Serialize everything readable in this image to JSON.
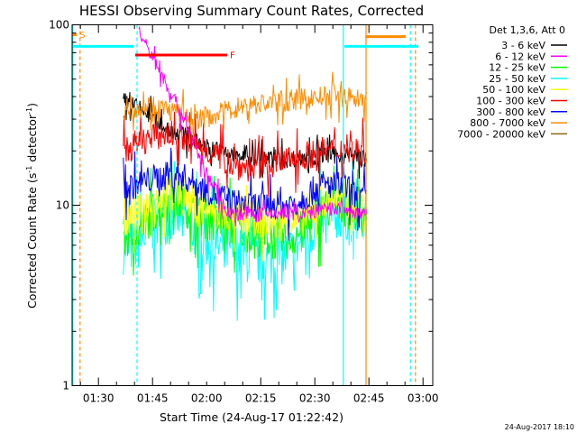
{
  "chart_data": {
    "type": "line",
    "title": "HESSI Observing Summary Count Rates, Corrected",
    "xlabel": "Start Time (24-Aug-17 01:22:42)",
    "ylabel": "Corrected Count Rate (s⁻¹ detector⁻¹)",
    "ylabel_main": "Corrected Count Rate (s",
    "ylabel_sup1": "-1",
    "ylabel_mid": " detector",
    "ylabel_sup2": "-1",
    "ylabel_end": ")",
    "yscale": "log",
    "ylim": [
      1,
      100
    ],
    "xlim_minutes": [
      0,
      100
    ],
    "y_ticks": [
      {
        "value": 1,
        "label": "1"
      },
      {
        "value": 10,
        "label": "10"
      },
      {
        "value": 100,
        "label": "100"
      }
    ],
    "x_ticks": [
      {
        "minute": 7.3,
        "label": "01:30"
      },
      {
        "minute": 22.3,
        "label": "01:45"
      },
      {
        "minute": 37.3,
        "label": "02:00"
      },
      {
        "minute": 52.3,
        "label": "02:15"
      },
      {
        "minute": 67.3,
        "label": "02:30"
      },
      {
        "minute": 82.3,
        "label": "02:45"
      },
      {
        "minute": 97.3,
        "label": "03:00"
      }
    ],
    "legend_header": "Det 1,3,6, Att 0",
    "legend_position": "right",
    "series": [
      {
        "name": "3 - 6 keV",
        "color": "#000000",
        "noise": 0.05,
        "points": [
          [
            14,
            38
          ],
          [
            16,
            37
          ],
          [
            18,
            35
          ],
          [
            20,
            33
          ],
          [
            22,
            31
          ],
          [
            24,
            29
          ],
          [
            26,
            27
          ],
          [
            30,
            25
          ],
          [
            35,
            22
          ],
          [
            40,
            20
          ],
          [
            45,
            19
          ],
          [
            50,
            18.5
          ],
          [
            55,
            18
          ],
          [
            60,
            18
          ],
          [
            65,
            18.5
          ],
          [
            70,
            19
          ],
          [
            75,
            19
          ],
          [
            79,
            18.5
          ],
          [
            82,
            18
          ]
        ]
      },
      {
        "name": "6 - 12 keV",
        "color": "#ff00ff",
        "noise": 0.04,
        "points": [
          [
            18.5,
            90
          ],
          [
            20,
            80
          ],
          [
            22,
            68
          ],
          [
            24,
            57
          ],
          [
            26,
            47
          ],
          [
            28,
            40
          ],
          [
            30,
            33
          ],
          [
            32,
            27
          ],
          [
            34,
            22
          ],
          [
            36,
            17
          ],
          [
            38,
            14
          ],
          [
            40,
            12
          ],
          [
            42,
            10
          ],
          [
            44,
            9
          ],
          [
            46,
            9
          ],
          [
            50,
            9
          ],
          [
            55,
            9
          ],
          [
            60,
            9
          ],
          [
            65,
            9
          ],
          [
            70,
            9.5
          ],
          [
            75,
            9.5
          ],
          [
            79,
            9
          ],
          [
            82,
            9
          ]
        ]
      },
      {
        "name": "12 - 25 keV",
        "color": "#00ff00",
        "noise": 0.12,
        "points": [
          [
            14,
            6.5
          ],
          [
            18,
            7
          ],
          [
            22,
            9
          ],
          [
            26,
            10.5
          ],
          [
            28,
            11
          ],
          [
            30,
            10.5
          ],
          [
            33,
            9.5
          ],
          [
            36,
            8.5
          ],
          [
            40,
            8
          ],
          [
            45,
            7.5
          ],
          [
            50,
            7
          ],
          [
            55,
            6.5
          ],
          [
            60,
            6.5
          ],
          [
            63,
            7
          ],
          [
            66,
            8
          ],
          [
            70,
            9.5
          ],
          [
            74,
            10
          ],
          [
            78,
            9.5
          ],
          [
            82,
            9
          ]
        ]
      },
      {
        "name": "25 - 50 keV",
        "color": "#00ffff",
        "noise": 0.15,
        "points": [
          [
            14,
            5.8
          ],
          [
            18,
            6
          ],
          [
            22,
            7.5
          ],
          [
            26,
            8.5
          ],
          [
            28,
            9
          ],
          [
            30,
            8.5
          ],
          [
            33,
            7.5
          ],
          [
            36,
            6.5
          ],
          [
            40,
            6
          ],
          [
            45,
            5.5
          ],
          [
            50,
            5
          ],
          [
            55,
            5
          ],
          [
            58,
            5
          ],
          [
            61,
            5.5
          ],
          [
            64,
            6.5
          ],
          [
            68,
            8
          ],
          [
            72,
            9
          ],
          [
            76,
            9
          ],
          [
            79,
            8.5
          ],
          [
            82,
            8.5
          ]
        ]
      },
      {
        "name": "50 - 100 keV",
        "color": "#ffff00",
        "noise": 0.1,
        "points": [
          [
            14,
            8
          ],
          [
            18,
            9
          ],
          [
            22,
            10.5
          ],
          [
            26,
            11.5
          ],
          [
            28,
            12
          ],
          [
            30,
            11.5
          ],
          [
            33,
            10.5
          ],
          [
            36,
            9.5
          ],
          [
            40,
            9
          ],
          [
            45,
            8.5
          ],
          [
            50,
            8.5
          ],
          [
            55,
            8
          ],
          [
            60,
            8
          ],
          [
            65,
            8.5
          ],
          [
            70,
            10.5
          ],
          [
            74,
            11
          ],
          [
            78,
            10
          ],
          [
            82,
            9.5
          ]
        ]
      },
      {
        "name": "100 - 300 keV",
        "color": "#ff0000",
        "noise": 0.08,
        "points": [
          [
            14,
            20
          ],
          [
            18,
            22
          ],
          [
            22,
            24
          ],
          [
            26,
            25
          ],
          [
            30,
            24
          ],
          [
            34,
            22
          ],
          [
            38,
            20
          ],
          [
            42,
            18
          ],
          [
            46,
            16.5
          ],
          [
            50,
            16
          ],
          [
            55,
            17
          ],
          [
            60,
            18
          ],
          [
            65,
            19
          ],
          [
            70,
            20
          ],
          [
            75,
            20.5
          ],
          [
            79,
            20
          ],
          [
            82,
            20
          ]
        ]
      },
      {
        "name": "300 - 800 keV",
        "color": "#0000ff",
        "noise": 0.08,
        "points": [
          [
            14,
            12.5
          ],
          [
            18,
            13
          ],
          [
            22,
            14
          ],
          [
            26,
            14.5
          ],
          [
            28,
            15
          ],
          [
            32,
            14
          ],
          [
            36,
            12.5
          ],
          [
            40,
            11.5
          ],
          [
            44,
            10.5
          ],
          [
            48,
            10
          ],
          [
            52,
            10
          ],
          [
            56,
            10
          ],
          [
            60,
            10
          ],
          [
            64,
            11
          ],
          [
            68,
            12.5
          ],
          [
            72,
            13
          ],
          [
            76,
            12.5
          ],
          [
            79,
            11
          ],
          [
            82,
            11
          ]
        ]
      },
      {
        "name": "800 - 7000 keV",
        "color": "#ff8c00",
        "noise": 0.06,
        "points": [
          [
            14,
            34
          ],
          [
            18,
            35
          ],
          [
            22,
            36
          ],
          [
            26,
            34
          ],
          [
            30,
            32
          ],
          [
            34,
            30
          ],
          [
            38,
            31
          ],
          [
            42,
            33
          ],
          [
            46,
            35
          ],
          [
            50,
            36
          ],
          [
            55,
            37
          ],
          [
            60,
            38
          ],
          [
            65,
            39
          ],
          [
            70,
            40
          ],
          [
            75,
            40
          ],
          [
            79,
            39
          ],
          [
            82,
            39
          ]
        ]
      },
      {
        "name": "7000 - 20000 keV",
        "color": "#8b6914",
        "noise": 0.0,
        "points": []
      }
    ],
    "segments": [
      {
        "label": "S",
        "color": "#ff8c00",
        "y": 88,
        "x1": 0,
        "x2": 1.3
      },
      {
        "color": "#00ffff",
        "y": 76,
        "x1": 0,
        "x2": 17
      },
      {
        "label": "F",
        "color": "#ff0000",
        "y": 68,
        "x1": 17.5,
        "x2": 43
      },
      {
        "color": "#00ffff",
        "y": 76,
        "x1": 75.5,
        "x2": 96
      },
      {
        "color": "#ff8c00",
        "y": 86,
        "x1": 81.3,
        "x2": 92.5
      }
    ],
    "vlines": [
      {
        "minute": 0.2,
        "color": "#00ffff",
        "style": "solid"
      },
      {
        "minute": 2.2,
        "color": "#ff8c00",
        "style": "dashed"
      },
      {
        "minute": 18.0,
        "color": "#00ffff",
        "style": "dashed"
      },
      {
        "minute": 75.2,
        "color": "#00ffff",
        "style": "solid"
      },
      {
        "minute": 81.5,
        "color": "#ff8c00",
        "style": "solid"
      },
      {
        "minute": 93.8,
        "color": "#00ffff",
        "style": "dashed"
      },
      {
        "minute": 95.2,
        "color": "#ff8c00",
        "style": "dashed"
      }
    ],
    "data_window_minutes": [
      14.2,
      81.8
    ]
  },
  "footer": {
    "date_stamp": "24-Aug-2017 18:10"
  }
}
